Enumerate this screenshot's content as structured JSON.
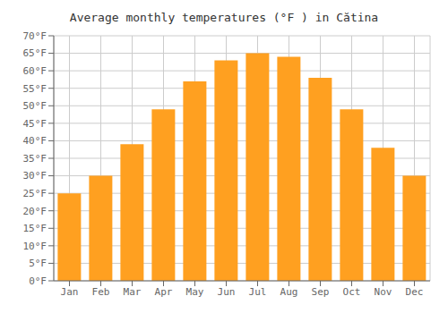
{
  "chart_data": {
    "type": "bar",
    "title": "Average monthly temperatures (°F ) in Cătina",
    "categories": [
      "Jan",
      "Feb",
      "Mar",
      "Apr",
      "May",
      "Jun",
      "Jul",
      "Aug",
      "Sep",
      "Oct",
      "Nov",
      "Dec"
    ],
    "values": [
      25,
      30,
      39,
      49,
      57,
      63,
      65,
      64,
      58,
      49,
      38,
      30
    ],
    "color": "#FFA020",
    "ylim": [
      0,
      70
    ],
    "yticks": [
      {
        "value": 0,
        "label": "0°F"
      },
      {
        "value": 5,
        "label": "5°F"
      },
      {
        "value": 10,
        "label": "10°F"
      },
      {
        "value": 15,
        "label": "15°F"
      },
      {
        "value": 20,
        "label": "20°F"
      },
      {
        "value": 25,
        "label": "25°F"
      },
      {
        "value": 30,
        "label": "30°F"
      },
      {
        "value": 35,
        "label": "35°F"
      },
      {
        "value": 40,
        "label": "40°F"
      },
      {
        "value": 45,
        "label": "45°F"
      },
      {
        "value": 50,
        "label": "50°F"
      },
      {
        "value": 55,
        "label": "55°F"
      },
      {
        "value": 60,
        "label": "60°F"
      },
      {
        "value": 65,
        "label": "65°F"
      },
      {
        "value": 70,
        "label": "70°F"
      }
    ],
    "grid": true
  }
}
